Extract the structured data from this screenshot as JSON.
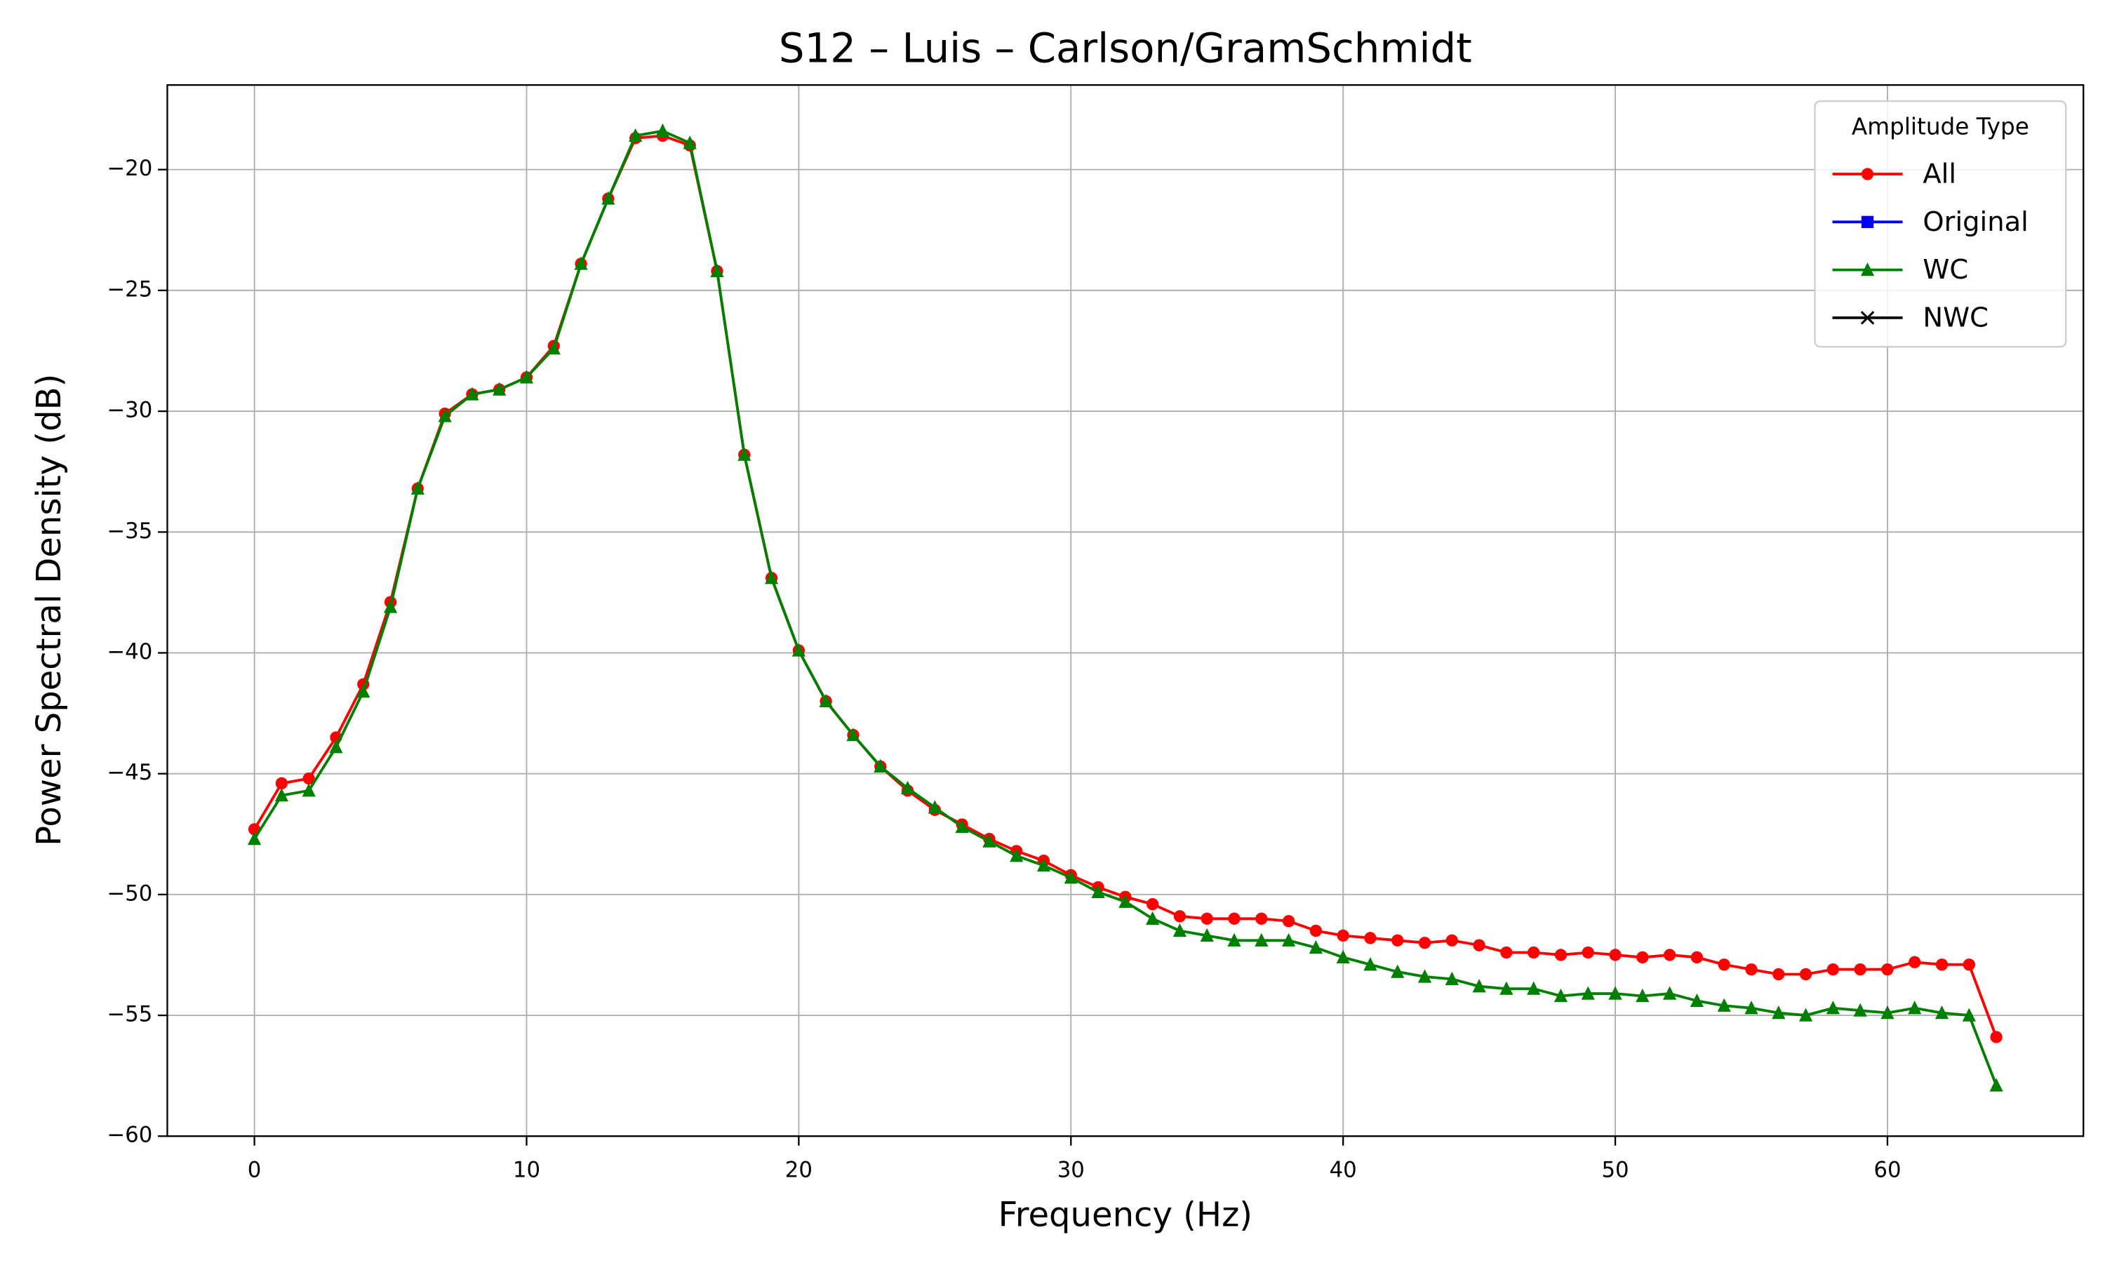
{
  "chart_data": {
    "type": "line",
    "title": "S12 – Luis – Carlson/GramSchmidt",
    "x_label": "Frequency (Hz)",
    "y_label": "Power Spectral Density (dB)",
    "x": [
      0,
      1,
      2,
      3,
      4,
      5,
      6,
      7,
      8,
      9,
      10,
      11,
      12,
      13,
      14,
      15,
      16,
      17,
      18,
      19,
      20,
      21,
      22,
      23,
      24,
      25,
      26,
      27,
      28,
      29,
      30,
      31,
      32,
      33,
      34,
      35,
      36,
      37,
      38,
      39,
      40,
      41,
      42,
      43,
      44,
      45,
      46,
      47,
      48,
      49,
      50,
      51,
      52,
      53,
      54,
      55,
      56,
      57,
      58,
      59,
      60,
      61,
      62,
      63,
      64
    ],
    "series": [
      {
        "name": "All",
        "color": "#ff0000",
        "marker": "circle",
        "values": [
          -47.3,
          -45.4,
          -45.2,
          -43.5,
          -41.3,
          -37.9,
          -33.2,
          -30.1,
          -29.3,
          -29.1,
          -28.6,
          -27.3,
          -23.9,
          -21.2,
          -18.7,
          -18.6,
          -19.0,
          -24.2,
          -31.8,
          -36.9,
          -39.9,
          -42.0,
          -43.4,
          -44.7,
          -45.7,
          -46.5,
          -47.1,
          -47.7,
          -48.2,
          -48.6,
          -49.2,
          -49.7,
          -50.1,
          -50.4,
          -50.9,
          -51.0,
          -51.0,
          -51.0,
          -51.1,
          -51.5,
          -51.7,
          -51.8,
          -51.9,
          -52.0,
          -51.9,
          -52.1,
          -52.4,
          -52.4,
          -52.5,
          -52.4,
          -52.5,
          -52.6,
          -52.5,
          -52.6,
          -52.9,
          -53.1,
          -53.3,
          -53.3,
          -53.1,
          -53.1,
          -53.1,
          -52.8,
          -52.9,
          -52.9,
          -55.9
        ]
      },
      {
        "name": "Original",
        "color": "#0000ff",
        "marker": "square",
        "values": [
          null,
          null,
          null,
          null,
          null,
          null,
          null,
          null,
          null,
          null,
          null,
          null,
          null,
          null,
          null,
          null,
          null,
          null,
          null,
          null,
          null,
          null,
          null,
          null,
          null,
          null,
          null,
          null,
          null,
          null,
          null,
          null,
          null,
          null,
          null,
          null,
          null,
          null,
          null,
          null,
          null,
          null,
          null,
          null,
          null,
          null,
          null,
          null,
          null,
          null,
          null,
          null,
          null,
          null,
          null,
          null,
          null,
          null,
          null,
          null,
          null,
          null,
          null,
          null,
          null
        ]
      },
      {
        "name": "WC",
        "color": "#008000",
        "marker": "triangle",
        "values": [
          -47.7,
          -45.9,
          -45.7,
          -43.9,
          -41.6,
          -38.1,
          -33.2,
          -30.2,
          -29.3,
          -29.1,
          -28.6,
          -27.4,
          -23.9,
          -21.2,
          -18.6,
          -18.4,
          -18.9,
          -24.2,
          -31.8,
          -36.9,
          -39.9,
          -42.0,
          -43.4,
          -44.7,
          -45.6,
          -46.4,
          -47.2,
          -47.8,
          -48.4,
          -48.8,
          -49.3,
          -49.9,
          -50.3,
          -51.0,
          -51.5,
          -51.7,
          -51.9,
          -51.9,
          -51.9,
          -52.2,
          -52.6,
          -52.9,
          -53.2,
          -53.4,
          -53.5,
          -53.8,
          -53.9,
          -53.9,
          -54.2,
          -54.1,
          -54.1,
          -54.2,
          -54.1,
          -54.4,
          -54.6,
          -54.7,
          -54.9,
          -55.0,
          -54.7,
          -54.8,
          -54.9,
          -54.7,
          -54.9,
          -55.0,
          -57.9
        ]
      },
      {
        "name": "NWC",
        "color": "#000000",
        "marker": "x",
        "values": [
          null,
          null,
          null,
          null,
          null,
          null,
          null,
          null,
          null,
          null,
          null,
          null,
          null,
          null,
          null,
          null,
          null,
          null,
          null,
          null,
          null,
          null,
          null,
          null,
          null,
          null,
          null,
          null,
          null,
          null,
          null,
          null,
          null,
          null,
          null,
          null,
          null,
          null,
          null,
          null,
          null,
          null,
          null,
          null,
          null,
          null,
          null,
          null,
          null,
          null,
          null,
          null,
          null,
          null,
          null,
          null,
          null,
          null,
          null,
          null,
          null,
          null,
          null,
          null,
          null
        ]
      }
    ],
    "legend_title": "Amplitude Type",
    "legend": "upper right",
    "xlim": [
      -3.2,
      67.2
    ],
    "xticks": [
      0,
      10,
      20,
      30,
      40,
      50,
      60
    ],
    "ylim": [
      -60,
      -16.5
    ],
    "yticks": [
      {
        "value": -60,
        "label": "−60"
      },
      {
        "value": -55,
        "label": "−55"
      },
      {
        "value": -50,
        "label": "−50"
      },
      {
        "value": -45,
        "label": "−45"
      },
      {
        "value": -40,
        "label": "−40"
      },
      {
        "value": -35,
        "label": "−35"
      },
      {
        "value": -30,
        "label": "−30"
      },
      {
        "value": -25,
        "label": "−25"
      },
      {
        "value": -20,
        "label": "−20"
      }
    ],
    "grid": true
  }
}
